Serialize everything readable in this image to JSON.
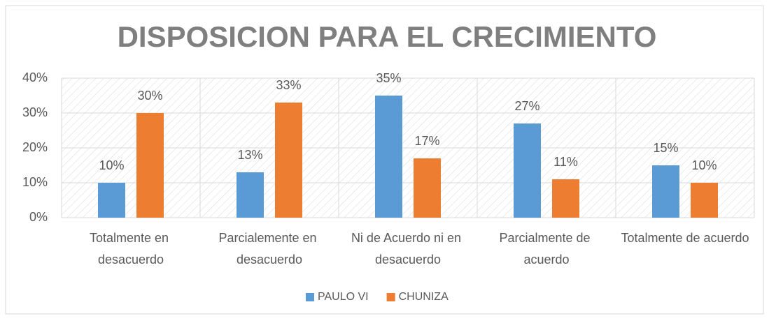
{
  "chart_data": {
    "type": "bar",
    "title": "DISPOSICION PARA EL CRECIMIENTO",
    "categories": [
      "Totalmente en desacuerdo",
      "Parcialemente en desacuerdo",
      "Ni de Acuerdo ni en desacuerdo",
      "Parcialmente de acuerdo",
      "Totalmente de acuerdo"
    ],
    "series": [
      {
        "name": "PAULO VI",
        "color": "#5b9bd5",
        "values": [
          10,
          13,
          35,
          27,
          15
        ],
        "value_labels": [
          "10%",
          "13%",
          "35%",
          "27%",
          "15%"
        ]
      },
      {
        "name": "CHUNIZA",
        "color": "#ed7d31",
        "values": [
          30,
          33,
          17,
          11,
          10
        ],
        "value_labels": [
          "30%",
          "33%",
          "17%",
          "11%",
          "10%"
        ]
      }
    ],
    "ylim": [
      0,
      40
    ],
    "yticks": [
      {
        "value": 0,
        "label": "0%"
      },
      {
        "value": 10,
        "label": "10%"
      },
      {
        "value": 20,
        "label": "20%"
      },
      {
        "value": 30,
        "label": "30%"
      },
      {
        "value": 40,
        "label": "40%"
      }
    ],
    "grid": true,
    "legend": "bottom"
  }
}
